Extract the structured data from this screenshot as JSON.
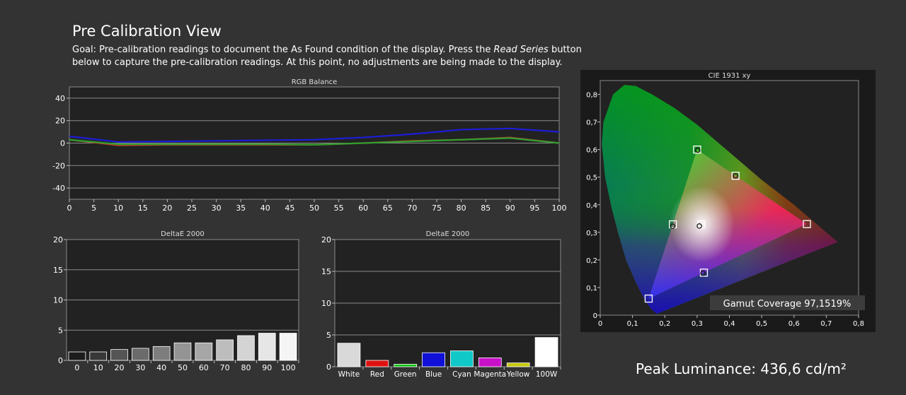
{
  "header": {
    "title": "Pre Calibration View",
    "goal_prefix": "Goal: Pre-calibration readings to document the As Found condition of the display. Press the ",
    "goal_emph": "Read Series",
    "goal_suffix": " button below to capture the pre-calibration readings. At this point, no adjustments are being made to the display."
  },
  "peak_luminance": "Peak Luminance: 436,6 cd/m²",
  "colors": {
    "background": "#333333",
    "plot_background": "#222222",
    "grid": "#8a8a8a",
    "red_series": "#c0392b",
    "green_series": "#2ea02e",
    "blue_series": "#1d1dd8"
  },
  "chart_data": [
    {
      "type": "line",
      "title": "RGB Balance",
      "x": [
        0,
        10,
        20,
        30,
        40,
        50,
        60,
        70,
        80,
        90,
        100
      ],
      "xticks": [
        "0",
        "5",
        "10",
        "15",
        "20",
        "25",
        "30",
        "35",
        "40",
        "45",
        "50",
        "55",
        "60",
        "65",
        "70",
        "75",
        "80",
        "85",
        "90",
        "95",
        "100"
      ],
      "ylim": [
        -50,
        50
      ],
      "yticks": [
        "40",
        "20",
        "0",
        "-20",
        "-40"
      ],
      "grid": true,
      "series": [
        {
          "color": "#1d1dd8",
          "values": [
            6,
            1,
            1.5,
            2,
            2.5,
            3,
            5,
            8,
            12,
            13,
            10
          ]
        },
        {
          "color": "#c0392b",
          "values": [
            3,
            -2,
            -1.5,
            -1.5,
            -1.5,
            -1.5,
            0,
            2,
            3,
            5,
            0
          ]
        },
        {
          "color": "#2ea02e",
          "values": [
            3,
            -1,
            -1,
            -1,
            -1,
            -1.5,
            0,
            1.5,
            3,
            4.5,
            0
          ]
        }
      ]
    },
    {
      "type": "bar",
      "title": "DeltaE 2000",
      "categories": [
        "0",
        "10",
        "20",
        "30",
        "40",
        "50",
        "60",
        "70",
        "80",
        "90",
        "100"
      ],
      "values": [
        1.4,
        1.4,
        1.8,
        2.0,
        2.3,
        2.9,
        2.9,
        3.4,
        4.1,
        4.5,
        4.5
      ],
      "colors": [
        "#1c1c1c",
        "#383838",
        "#555555",
        "#6b6b6b",
        "#7d7d7d",
        "#949494",
        "#a6a6a6",
        "#bdbdbd",
        "#d4d4d4",
        "#e6e6e6",
        "#f5f5f5"
      ],
      "ylim": [
        0,
        20
      ],
      "yticks": [
        "20",
        "15",
        "10",
        "5",
        "0"
      ]
    },
    {
      "type": "bar",
      "title": "DeltaE 2000",
      "categories": [
        "White",
        "Red",
        "Green",
        "Blue",
        "Cyan",
        "Magenta",
        "Yellow",
        "100W"
      ],
      "values": [
        3.7,
        1.0,
        0.4,
        2.2,
        2.5,
        1.4,
        0.6,
        4.6
      ],
      "colors": [
        "#d9d9d9",
        "#e01010",
        "#10c010",
        "#1010d8",
        "#10c8c8",
        "#c810c8",
        "#c8c810",
        "#ffffff"
      ],
      "ylim": [
        0,
        20
      ],
      "yticks": [
        "20",
        "15",
        "10",
        "5",
        "0"
      ]
    },
    {
      "type": "scatter",
      "title": "CIE 1931 xy",
      "xlim": [
        0,
        0.8
      ],
      "ylim": [
        0,
        0.85
      ],
      "xticks": [
        "0",
        "0,1",
        "0,2",
        "0,3",
        "0,4",
        "0,5",
        "0,6",
        "0,7",
        "0,8"
      ],
      "yticks": [
        "0,8",
        "0,7",
        "0,6",
        "0,5",
        "0,4",
        "0,3",
        "0,2",
        "0,1",
        "0"
      ],
      "grid": false,
      "gamut_triangle": [
        [
          0.3,
          0.6
        ],
        [
          0.64,
          0.33
        ],
        [
          0.15,
          0.06
        ]
      ],
      "targets": [
        {
          "x": 0.3,
          "y": 0.6
        },
        {
          "x": 0.64,
          "y": 0.33
        },
        {
          "x": 0.15,
          "y": 0.06
        },
        {
          "x": 0.225,
          "y": 0.329
        },
        {
          "x": 0.321,
          "y": 0.154
        },
        {
          "x": 0.419,
          "y": 0.505
        },
        {
          "x": 0.3127,
          "y": 0.329
        }
      ],
      "measured": [
        {
          "x": 0.302,
          "y": 0.598
        },
        {
          "x": 0.419,
          "y": 0.505
        },
        {
          "x": 0.224,
          "y": 0.322
        },
        {
          "x": 0.307,
          "y": 0.323
        },
        {
          "x": 0.318,
          "y": 0.152
        }
      ],
      "annotation": "Gamut Coverage 97,1519%"
    }
  ]
}
